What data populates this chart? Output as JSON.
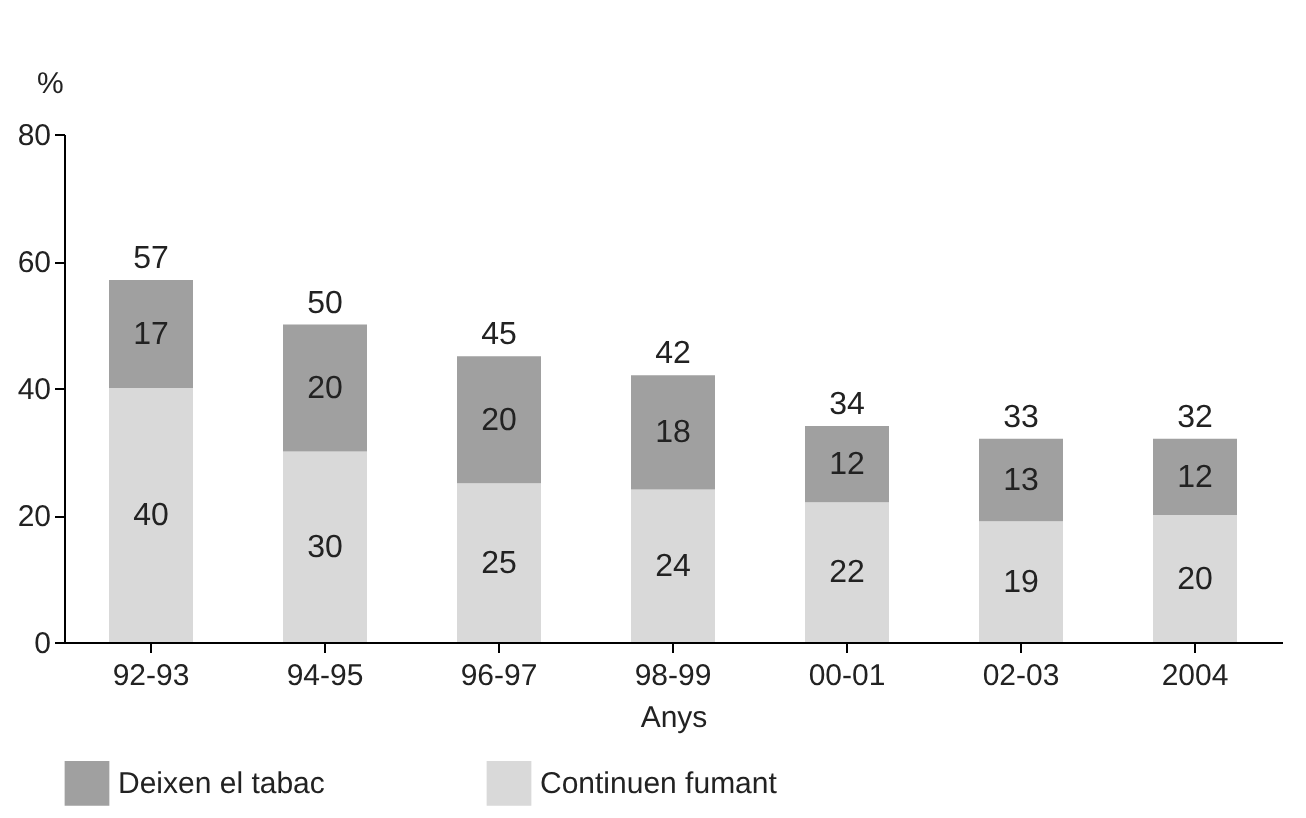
{
  "chart_data": {
    "type": "bar",
    "stacked": true,
    "xlabel": "Anys",
    "ylabel": "%",
    "categories": [
      "92-93",
      "94-95",
      "96-97",
      "98-99",
      "00-01",
      "02-03",
      "2004"
    ],
    "series": [
      {
        "name": "Continuen fumant",
        "color": "#d9d9d9",
        "values": [
          40,
          30,
          25,
          24,
          22,
          19,
          20
        ]
      },
      {
        "name": "Deixen el tabac",
        "color": "#a0a0a0",
        "values": [
          17,
          20,
          20,
          18,
          12,
          13,
          12
        ]
      }
    ],
    "totals": [
      "57",
      "50",
      "45",
      "42",
      "34",
      "33",
      "32"
    ],
    "data_labels": true,
    "ylim": [
      0,
      80
    ],
    "yticks": [
      0,
      20,
      40,
      60,
      80
    ],
    "grid": false,
    "legend": "bottom"
  }
}
